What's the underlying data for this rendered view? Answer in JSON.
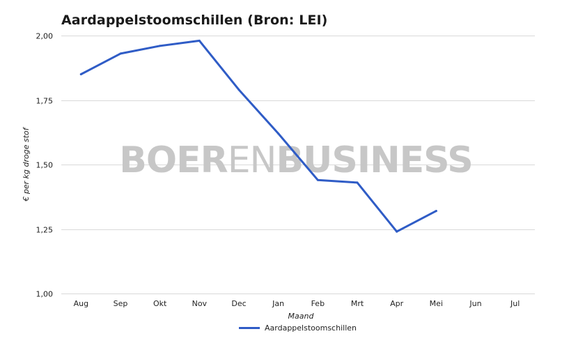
{
  "title": "Aardappelstoomschillen (Bron: LEI)",
  "watermark": {
    "part1": "BOER",
    "part2": "EN",
    "part3": "BUSINESS"
  },
  "colors": {
    "series": "#2f5cc6",
    "grid": "#d9d9d9",
    "watermark": "#c7c7c7"
  },
  "chart_data": {
    "type": "line",
    "title": "Aardappelstoomschillen (Bron: LEI)",
    "xlabel": "Maand",
    "ylabel": "€ per kg droge stof",
    "categories": [
      "Aug",
      "Sep",
      "Okt",
      "Nov",
      "Dec",
      "Jan",
      "Feb",
      "Mrt",
      "Apr",
      "Mei",
      "Jun",
      "Jul"
    ],
    "y_tick_labels": [
      "1,00",
      "1,25",
      "1,50",
      "1,75",
      "2,00"
    ],
    "y_ticks": [
      1.0,
      1.25,
      1.5,
      1.75,
      2.0
    ],
    "ylim": [
      1.0,
      2.0
    ],
    "grid": true,
    "legend_position": "bottom",
    "series": [
      {
        "name": "Aardappelstoomschillen",
        "values": [
          1.85,
          1.93,
          1.96,
          1.98,
          1.79,
          1.62,
          1.44,
          1.43,
          1.24,
          1.32,
          null,
          null
        ]
      }
    ]
  }
}
